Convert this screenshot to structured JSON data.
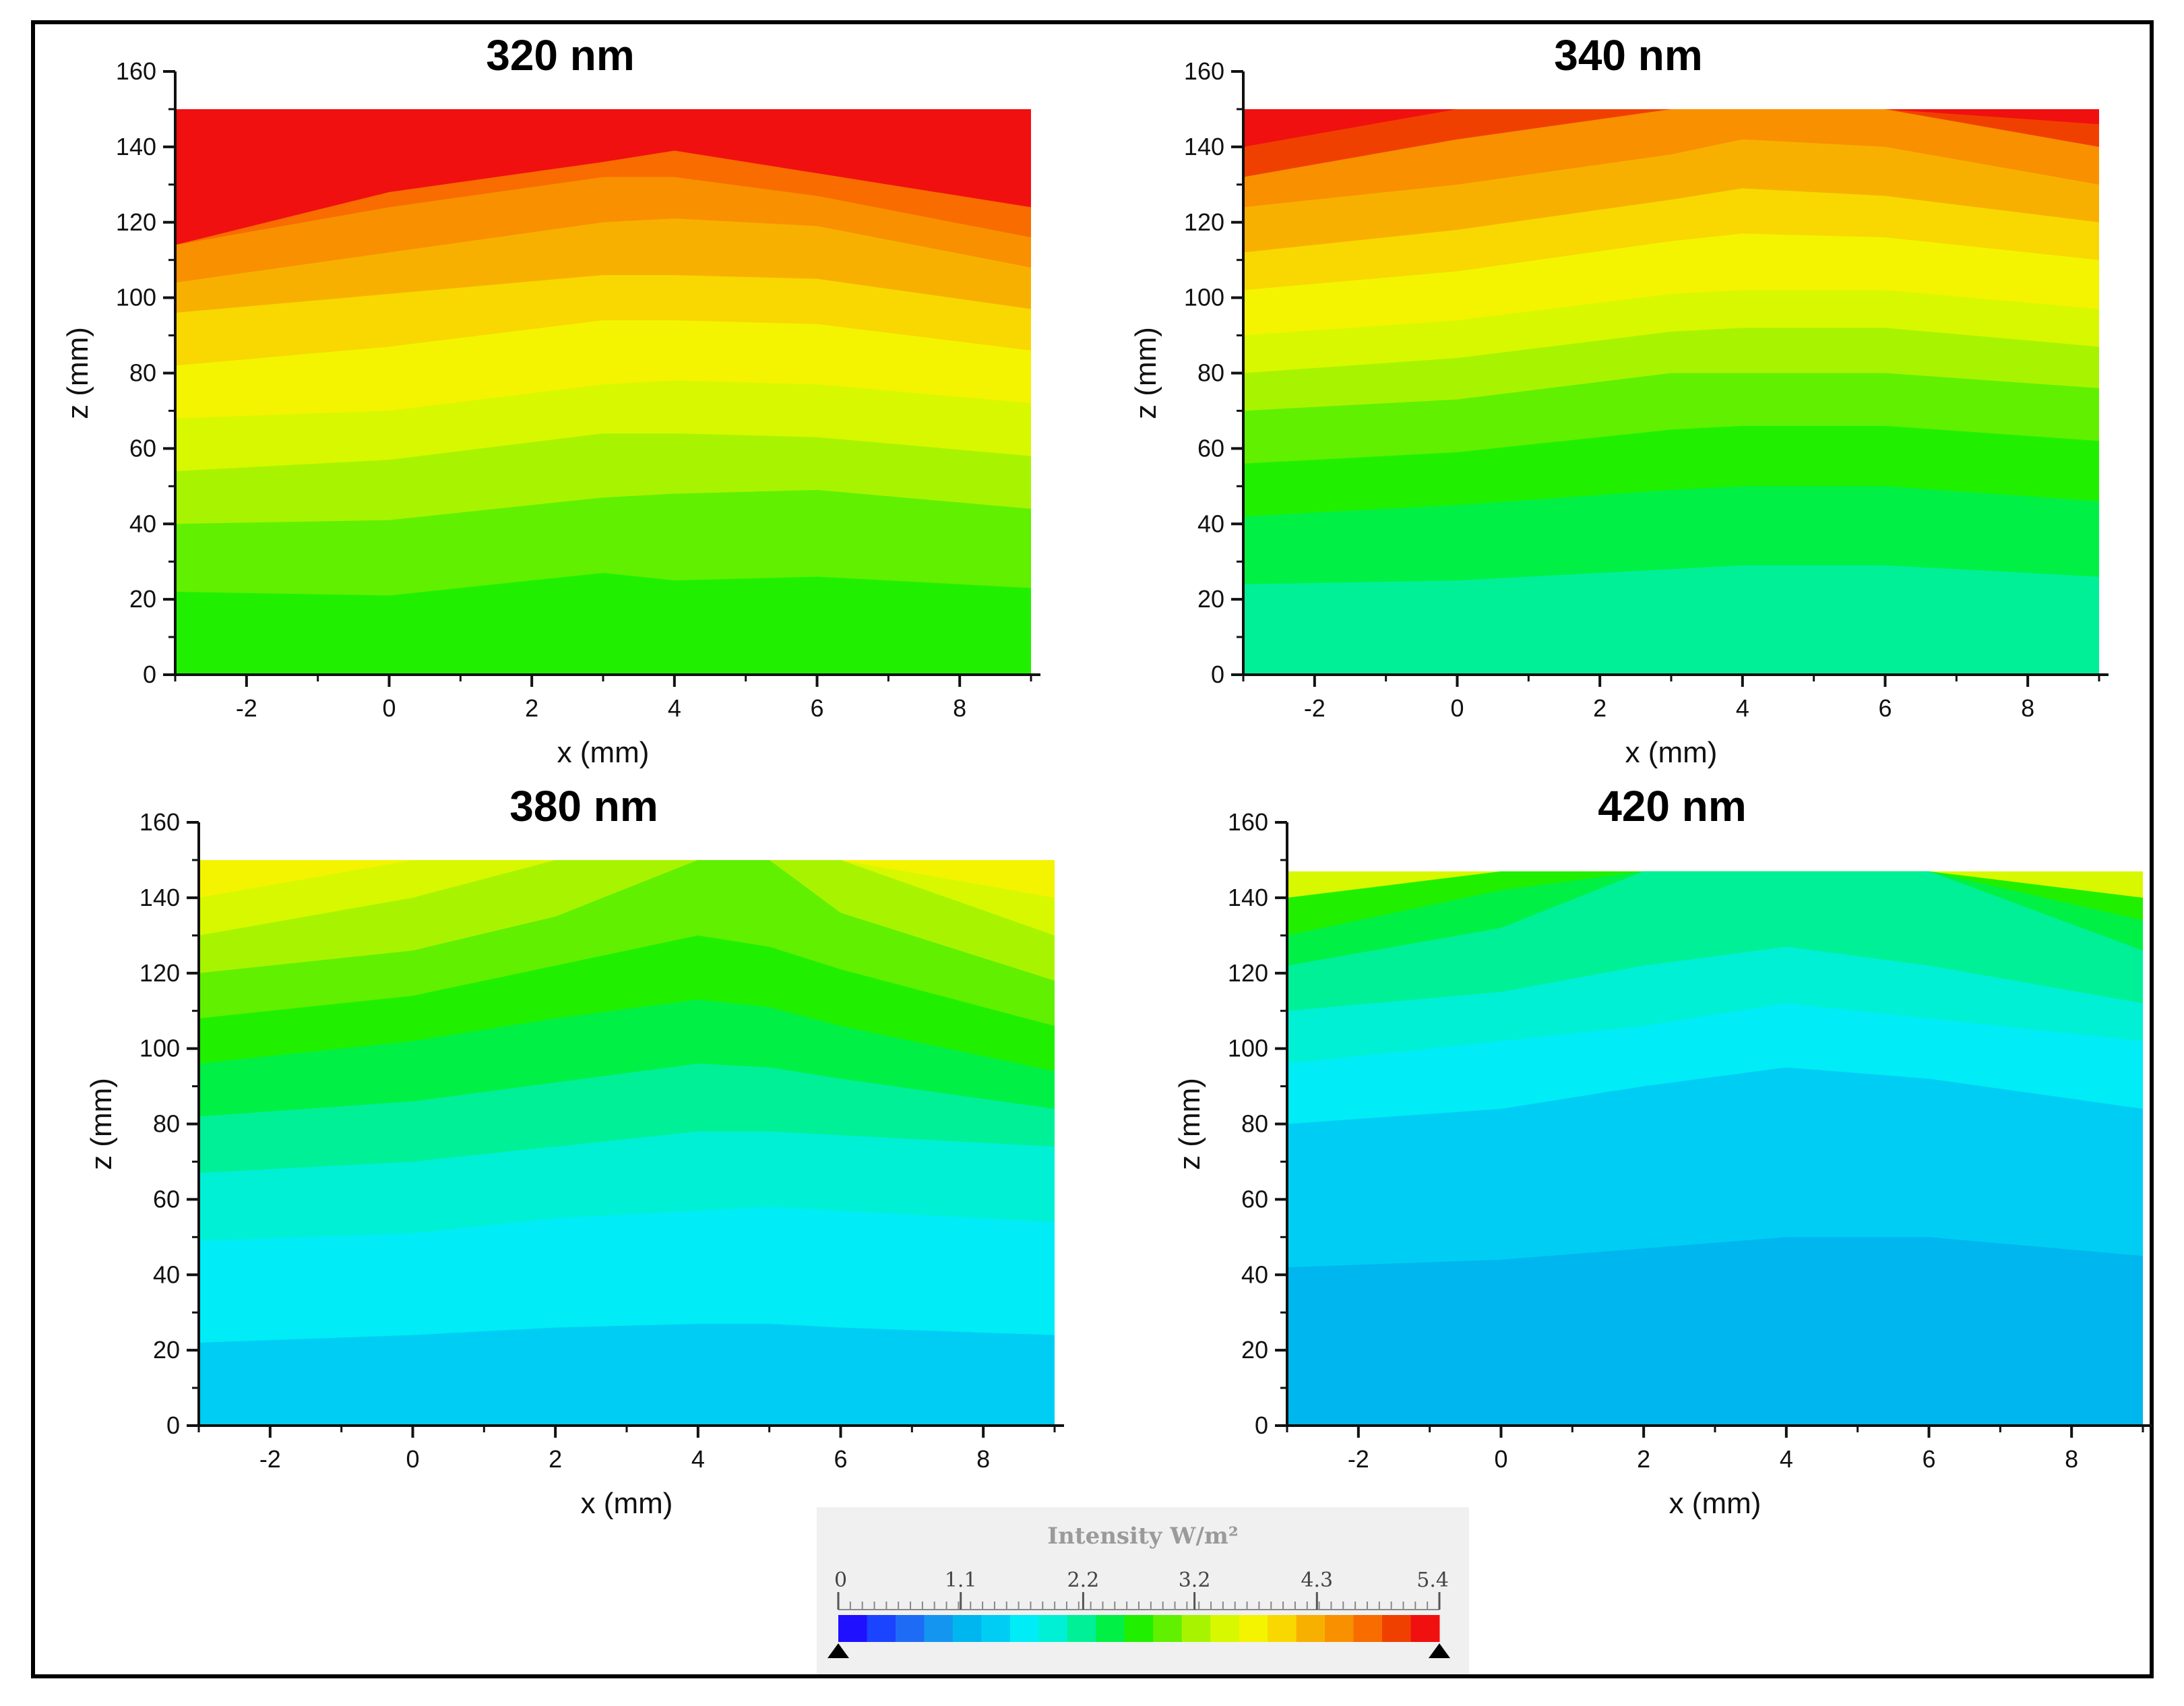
{
  "colors": {
    "palette": [
      "#1f10ff",
      "#1a44ff",
      "#1e6cf6",
      "#1496f0",
      "#00b6ee",
      "#00cdf4",
      "#00ecf6",
      "#00f0d6",
      "#00f098",
      "#00f046",
      "#20f000",
      "#60f000",
      "#a8f400",
      "#d8f800",
      "#f4f400",
      "#f8d800",
      "#f8b000",
      "#f89000",
      "#f86c00",
      "#f04000",
      "#f01010"
    ]
  },
  "chart_data": [
    {
      "type": "heatmap",
      "title": "320 nm",
      "xlabel": "x (mm)",
      "ylabel": "z (mm)",
      "xlim": [
        -3,
        9
      ],
      "ylim": [
        0,
        160
      ],
      "data_zlim": [
        0,
        150
      ],
      "x_ticks": [
        "-2",
        "0",
        "2",
        "4",
        "6",
        "8"
      ],
      "y_ticks": [
        "0",
        "20",
        "40",
        "60",
        "80",
        "100",
        "120",
        "140",
        "160"
      ],
      "x": [
        -3,
        0,
        3,
        4,
        6,
        9
      ],
      "bands": [
        {
          "color_index": 10,
          "z_top": [
            22,
            21,
            27,
            25,
            26,
            23
          ]
        },
        {
          "color_index": 11,
          "z_top": [
            40,
            41,
            47,
            48,
            49,
            44
          ]
        },
        {
          "color_index": 12,
          "z_top": [
            54,
            57,
            64,
            64,
            63,
            58
          ]
        },
        {
          "color_index": 13,
          "z_top": [
            68,
            70,
            77,
            78,
            77,
            72
          ]
        },
        {
          "color_index": 14,
          "z_top": [
            82,
            87,
            94,
            94,
            93,
            86
          ]
        },
        {
          "color_index": 15,
          "z_top": [
            96,
            101,
            106,
            106,
            105,
            97
          ]
        },
        {
          "color_index": 16,
          "z_top": [
            104,
            112,
            120,
            121,
            119,
            108
          ]
        },
        {
          "color_index": 17,
          "z_top": [
            114,
            124,
            132,
            132,
            127,
            116
          ]
        },
        {
          "color_index": 18,
          "z_top": [
            114,
            128,
            136,
            139,
            133,
            124
          ]
        },
        {
          "color_index": 20,
          "z_top": [
            150,
            150,
            150,
            150,
            150,
            150
          ]
        }
      ]
    },
    {
      "type": "heatmap",
      "title": "340 nm",
      "xlabel": "x (mm)",
      "ylabel": "z (mm)",
      "xlim": [
        -3,
        9
      ],
      "ylim": [
        0,
        160
      ],
      "data_zlim": [
        0,
        150
      ],
      "x_ticks": [
        "-2",
        "0",
        "2",
        "4",
        "6",
        "8"
      ],
      "y_ticks": [
        "0",
        "20",
        "40",
        "60",
        "80",
        "100",
        "120",
        "140",
        "160"
      ],
      "x": [
        -3,
        0,
        3,
        4,
        6,
        9
      ],
      "bands": [
        {
          "color_index": 8,
          "z_top": [
            24,
            25,
            28,
            29,
            29,
            26
          ]
        },
        {
          "color_index": 9,
          "z_top": [
            42,
            45,
            49,
            50,
            50,
            46
          ]
        },
        {
          "color_index": 10,
          "z_top": [
            56,
            59,
            65,
            66,
            66,
            62
          ]
        },
        {
          "color_index": 11,
          "z_top": [
            70,
            73,
            80,
            80,
            80,
            76
          ]
        },
        {
          "color_index": 12,
          "z_top": [
            80,
            84,
            91,
            92,
            92,
            87
          ]
        },
        {
          "color_index": 13,
          "z_top": [
            90,
            94,
            101,
            102,
            102,
            97
          ]
        },
        {
          "color_index": 14,
          "z_top": [
            102,
            107,
            115,
            117,
            116,
            110
          ]
        },
        {
          "color_index": 15,
          "z_top": [
            112,
            118,
            126,
            129,
            127,
            120
          ]
        },
        {
          "color_index": 16,
          "z_top": [
            124,
            130,
            138,
            142,
            140,
            130
          ]
        },
        {
          "color_index": 17,
          "z_top": [
            132,
            142,
            150,
            150,
            150,
            140
          ]
        },
        {
          "color_index": 19,
          "z_top": [
            140,
            150,
            150,
            150,
            150,
            146
          ]
        },
        {
          "color_index": 20,
          "z_top": [
            150,
            150,
            150,
            150,
            150,
            150
          ]
        }
      ]
    },
    {
      "type": "heatmap",
      "title": "380 nm",
      "xlabel": "x (mm)",
      "ylabel": "z (mm)",
      "xlim": [
        -3,
        9
      ],
      "ylim": [
        0,
        160
      ],
      "data_zlim": [
        0,
        150
      ],
      "x_ticks": [
        "-2",
        "0",
        "2",
        "4",
        "6",
        "8"
      ],
      "y_ticks": [
        "0",
        "20",
        "40",
        "60",
        "80",
        "100",
        "120",
        "140",
        "160"
      ],
      "x": [
        -3,
        0,
        2,
        4,
        5,
        6,
        9
      ],
      "bands": [
        {
          "color_index": 5,
          "z_top": [
            22,
            24,
            26,
            27,
            27,
            26,
            24
          ]
        },
        {
          "color_index": 6,
          "z_top": [
            49,
            51,
            55,
            57,
            58,
            57,
            54
          ]
        },
        {
          "color_index": 7,
          "z_top": [
            67,
            70,
            74,
            78,
            78,
            77,
            74
          ]
        },
        {
          "color_index": 8,
          "z_top": [
            82,
            86,
            91,
            96,
            95,
            92,
            84
          ]
        },
        {
          "color_index": 9,
          "z_top": [
            96,
            102,
            108,
            113,
            111,
            106,
            94
          ]
        },
        {
          "color_index": 10,
          "z_top": [
            108,
            114,
            122,
            130,
            127,
            121,
            106
          ]
        },
        {
          "color_index": 11,
          "z_top": [
            120,
            126,
            135,
            150,
            150,
            136,
            118
          ]
        },
        {
          "color_index": 12,
          "z_top": [
            130,
            140,
            150,
            150,
            150,
            150,
            130
          ]
        },
        {
          "color_index": 13,
          "z_top": [
            140,
            150,
            150,
            150,
            150,
            150,
            140
          ]
        },
        {
          "color_index": 14,
          "z_top": [
            150,
            150,
            150,
            150,
            150,
            150,
            150
          ]
        }
      ]
    },
    {
      "type": "heatmap",
      "title": "420 nm",
      "xlabel": "x (mm)",
      "ylabel": "z (mm)",
      "xlim": [
        -3,
        9
      ],
      "ylim": [
        0,
        160
      ],
      "data_zlim": [
        0,
        147
      ],
      "x_ticks": [
        "-2",
        "0",
        "2",
        "4",
        "6",
        "8"
      ],
      "y_ticks": [
        "0",
        "20",
        "40",
        "60",
        "80",
        "100",
        "120",
        "140",
        "160"
      ],
      "x": [
        -3,
        0,
        2,
        4,
        6,
        9
      ],
      "bands": [
        {
          "color_index": 4,
          "z_top": [
            42,
            44,
            47,
            50,
            50,
            45
          ]
        },
        {
          "color_index": 5,
          "z_top": [
            80,
            84,
            90,
            95,
            92,
            84
          ]
        },
        {
          "color_index": 6,
          "z_top": [
            96,
            102,
            106,
            112,
            108,
            102
          ]
        },
        {
          "color_index": 7,
          "z_top": [
            110,
            115,
            122,
            127,
            122,
            112
          ]
        },
        {
          "color_index": 8,
          "z_top": [
            122,
            132,
            147,
            147,
            147,
            126
          ]
        },
        {
          "color_index": 9,
          "z_top": [
            130,
            142,
            147,
            147,
            147,
            134
          ]
        },
        {
          "color_index": 10,
          "z_top": [
            140,
            147,
            147,
            147,
            147,
            140
          ]
        },
        {
          "color_index": 13,
          "z_top": [
            147,
            147,
            147,
            147,
            147,
            147
          ]
        }
      ]
    }
  ],
  "colorbar": {
    "title": "Intensity  W/m²",
    "tick_labels": [
      "0",
      "1.1",
      "2.2",
      "3.2",
      "4.3",
      "5.4"
    ],
    "min": 0,
    "max": 5.4
  }
}
